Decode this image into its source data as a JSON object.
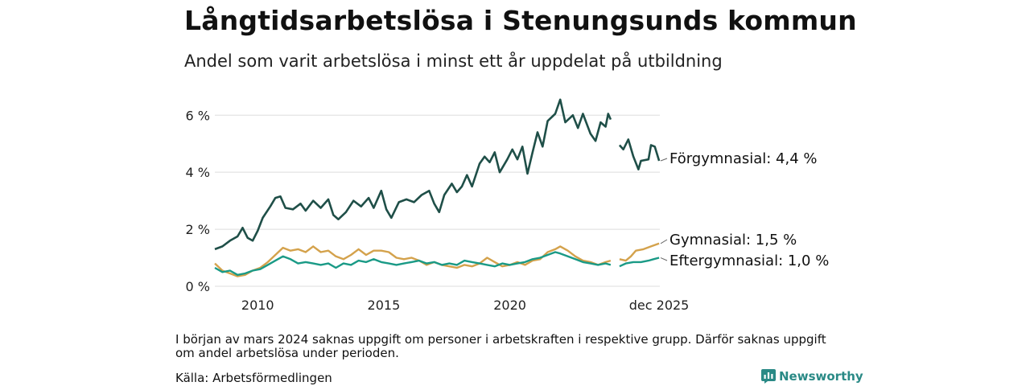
{
  "title": "Långtidsarbetslösa i Stenungsunds kommun",
  "subtitle": "Andel som varit arbetslösa i minst ett år uppdelat på utbildning",
  "note": "I början av mars 2024 saknas uppgift om personer i arbetskraften i respektive grupp. Därför saknas uppgift om andel arbetslösa under perioden.",
  "source": "Källa: Arbetsförmedlingen",
  "brand": "Newsworthy",
  "colors": {
    "forgymnasial": "#1f4f48",
    "gymnasial": "#d4a24c",
    "eftergymnasial": "#1a9a86",
    "grid": "#dddddd",
    "brand": "#2a8a86"
  },
  "chart_data": {
    "type": "line",
    "title": "Långtidsarbetslösa i Stenungsunds kommun",
    "ylim": [
      0,
      6.6
    ],
    "yticks": [
      0,
      2,
      4,
      6
    ],
    "ytick_labels": [
      "0 %",
      "2 %",
      "4 %",
      "6 %"
    ],
    "xlim": [
      2008.3,
      2025.95
    ],
    "xticks": [
      2010,
      2015,
      2020,
      2025.92
    ],
    "xtick_labels": [
      "2010",
      "2015",
      "2020",
      "dec 2025"
    ],
    "gap": [
      2024.0,
      2024.35
    ],
    "series": [
      {
        "name": "Förgymnasial",
        "label": "Förgymnasial: 4,4 %",
        "points": [
          [
            2008.3,
            1.3
          ],
          [
            2008.6,
            1.4
          ],
          [
            2008.9,
            1.6
          ],
          [
            2009.2,
            1.75
          ],
          [
            2009.4,
            2.05
          ],
          [
            2009.6,
            1.7
          ],
          [
            2009.8,
            1.6
          ],
          [
            2010.0,
            1.95
          ],
          [
            2010.2,
            2.4
          ],
          [
            2010.5,
            2.8
          ],
          [
            2010.7,
            3.1
          ],
          [
            2010.9,
            3.15
          ],
          [
            2011.1,
            2.75
          ],
          [
            2011.4,
            2.7
          ],
          [
            2011.7,
            2.9
          ],
          [
            2011.9,
            2.65
          ],
          [
            2012.2,
            3.0
          ],
          [
            2012.5,
            2.75
          ],
          [
            2012.8,
            3.05
          ],
          [
            2013.0,
            2.5
          ],
          [
            2013.2,
            2.35
          ],
          [
            2013.5,
            2.6
          ],
          [
            2013.8,
            3.0
          ],
          [
            2014.1,
            2.8
          ],
          [
            2014.4,
            3.1
          ],
          [
            2014.6,
            2.75
          ],
          [
            2014.9,
            3.35
          ],
          [
            2015.1,
            2.7
          ],
          [
            2015.3,
            2.4
          ],
          [
            2015.6,
            2.95
          ],
          [
            2015.9,
            3.05
          ],
          [
            2016.2,
            2.95
          ],
          [
            2016.5,
            3.2
          ],
          [
            2016.8,
            3.35
          ],
          [
            2017.0,
            2.9
          ],
          [
            2017.2,
            2.6
          ],
          [
            2017.4,
            3.2
          ],
          [
            2017.7,
            3.6
          ],
          [
            2017.9,
            3.3
          ],
          [
            2018.1,
            3.5
          ],
          [
            2018.3,
            3.9
          ],
          [
            2018.5,
            3.5
          ],
          [
            2018.8,
            4.3
          ],
          [
            2019.0,
            4.55
          ],
          [
            2019.2,
            4.35
          ],
          [
            2019.4,
            4.7
          ],
          [
            2019.6,
            4.0
          ],
          [
            2019.9,
            4.45
          ],
          [
            2020.1,
            4.8
          ],
          [
            2020.3,
            4.45
          ],
          [
            2020.5,
            4.9
          ],
          [
            2020.7,
            3.95
          ],
          [
            2020.9,
            4.7
          ],
          [
            2021.1,
            5.4
          ],
          [
            2021.3,
            4.9
          ],
          [
            2021.5,
            5.8
          ],
          [
            2021.8,
            6.05
          ],
          [
            2022.0,
            6.55
          ],
          [
            2022.2,
            5.75
          ],
          [
            2022.5,
            6.0
          ],
          [
            2022.7,
            5.55
          ],
          [
            2022.9,
            6.05
          ],
          [
            2023.2,
            5.35
          ],
          [
            2023.4,
            5.1
          ],
          [
            2023.6,
            5.75
          ],
          [
            2023.8,
            5.6
          ],
          [
            2023.9,
            6.05
          ],
          [
            2024.0,
            5.85
          ],
          [
            2024.35,
            4.95
          ],
          [
            2024.5,
            4.8
          ],
          [
            2024.7,
            5.15
          ],
          [
            2024.9,
            4.55
          ],
          [
            2025.1,
            4.1
          ],
          [
            2025.2,
            4.4
          ],
          [
            2025.5,
            4.45
          ],
          [
            2025.6,
            4.95
          ],
          [
            2025.75,
            4.9
          ],
          [
            2025.92,
            4.4
          ]
        ]
      },
      {
        "name": "Gymnasial",
        "label": "Gymnasial: 1,5 %",
        "points": [
          [
            2008.3,
            0.8
          ],
          [
            2008.6,
            0.55
          ],
          [
            2008.9,
            0.45
          ],
          [
            2009.2,
            0.35
          ],
          [
            2009.5,
            0.4
          ],
          [
            2009.8,
            0.55
          ],
          [
            2010.1,
            0.65
          ],
          [
            2010.4,
            0.85
          ],
          [
            2010.7,
            1.1
          ],
          [
            2011.0,
            1.35
          ],
          [
            2011.3,
            1.25
          ],
          [
            2011.6,
            1.3
          ],
          [
            2011.9,
            1.2
          ],
          [
            2012.2,
            1.4
          ],
          [
            2012.5,
            1.2
          ],
          [
            2012.8,
            1.25
          ],
          [
            2013.1,
            1.05
          ],
          [
            2013.4,
            0.95
          ],
          [
            2013.7,
            1.1
          ],
          [
            2014.0,
            1.3
          ],
          [
            2014.3,
            1.1
          ],
          [
            2014.6,
            1.25
          ],
          [
            2014.9,
            1.25
          ],
          [
            2015.2,
            1.2
          ],
          [
            2015.5,
            1.0
          ],
          [
            2015.8,
            0.95
          ],
          [
            2016.1,
            1.0
          ],
          [
            2016.4,
            0.9
          ],
          [
            2016.7,
            0.75
          ],
          [
            2017.0,
            0.85
          ],
          [
            2017.3,
            0.75
          ],
          [
            2017.6,
            0.7
          ],
          [
            2017.9,
            0.65
          ],
          [
            2018.2,
            0.75
          ],
          [
            2018.5,
            0.7
          ],
          [
            2018.8,
            0.8
          ],
          [
            2019.1,
            1.0
          ],
          [
            2019.4,
            0.85
          ],
          [
            2019.7,
            0.7
          ],
          [
            2020.0,
            0.75
          ],
          [
            2020.3,
            0.85
          ],
          [
            2020.6,
            0.75
          ],
          [
            2020.9,
            0.9
          ],
          [
            2021.2,
            0.95
          ],
          [
            2021.5,
            1.2
          ],
          [
            2021.8,
            1.3
          ],
          [
            2022.0,
            1.4
          ],
          [
            2022.3,
            1.25
          ],
          [
            2022.6,
            1.05
          ],
          [
            2022.9,
            0.9
          ],
          [
            2023.2,
            0.85
          ],
          [
            2023.5,
            0.75
          ],
          [
            2023.8,
            0.85
          ],
          [
            2024.0,
            0.9
          ],
          [
            2024.35,
            0.95
          ],
          [
            2024.6,
            0.9
          ],
          [
            2024.8,
            1.05
          ],
          [
            2025.0,
            1.25
          ],
          [
            2025.3,
            1.3
          ],
          [
            2025.6,
            1.4
          ],
          [
            2025.92,
            1.5
          ]
        ]
      },
      {
        "name": "Eftergymnasial",
        "label": "Eftergymnasial: 1,0 %",
        "points": [
          [
            2008.3,
            0.65
          ],
          [
            2008.6,
            0.5
          ],
          [
            2008.9,
            0.55
          ],
          [
            2009.2,
            0.4
          ],
          [
            2009.5,
            0.45
          ],
          [
            2009.8,
            0.55
          ],
          [
            2010.1,
            0.6
          ],
          [
            2010.4,
            0.75
          ],
          [
            2010.7,
            0.9
          ],
          [
            2011.0,
            1.05
          ],
          [
            2011.3,
            0.95
          ],
          [
            2011.6,
            0.8
          ],
          [
            2011.9,
            0.85
          ],
          [
            2012.2,
            0.8
          ],
          [
            2012.5,
            0.75
          ],
          [
            2012.8,
            0.8
          ],
          [
            2013.1,
            0.65
          ],
          [
            2013.4,
            0.8
          ],
          [
            2013.7,
            0.75
          ],
          [
            2014.0,
            0.9
          ],
          [
            2014.3,
            0.85
          ],
          [
            2014.6,
            0.95
          ],
          [
            2014.9,
            0.85
          ],
          [
            2015.2,
            0.8
          ],
          [
            2015.5,
            0.75
          ],
          [
            2015.8,
            0.8
          ],
          [
            2016.1,
            0.85
          ],
          [
            2016.4,
            0.9
          ],
          [
            2016.7,
            0.8
          ],
          [
            2017.0,
            0.85
          ],
          [
            2017.3,
            0.75
          ],
          [
            2017.6,
            0.8
          ],
          [
            2017.9,
            0.75
          ],
          [
            2018.2,
            0.9
          ],
          [
            2018.5,
            0.85
          ],
          [
            2018.8,
            0.8
          ],
          [
            2019.1,
            0.75
          ],
          [
            2019.4,
            0.7
          ],
          [
            2019.7,
            0.8
          ],
          [
            2020.0,
            0.75
          ],
          [
            2020.3,
            0.8
          ],
          [
            2020.6,
            0.85
          ],
          [
            2020.9,
            0.95
          ],
          [
            2021.2,
            1.0
          ],
          [
            2021.5,
            1.1
          ],
          [
            2021.8,
            1.2
          ],
          [
            2022.0,
            1.15
          ],
          [
            2022.3,
            1.05
          ],
          [
            2022.6,
            0.95
          ],
          [
            2022.9,
            0.85
          ],
          [
            2023.2,
            0.8
          ],
          [
            2023.5,
            0.75
          ],
          [
            2023.8,
            0.8
          ],
          [
            2024.0,
            0.75
          ],
          [
            2024.35,
            0.7
          ],
          [
            2024.6,
            0.8
          ],
          [
            2024.9,
            0.85
          ],
          [
            2025.2,
            0.85
          ],
          [
            2025.5,
            0.9
          ],
          [
            2025.7,
            0.95
          ],
          [
            2025.92,
            1.0
          ]
        ]
      }
    ]
  }
}
